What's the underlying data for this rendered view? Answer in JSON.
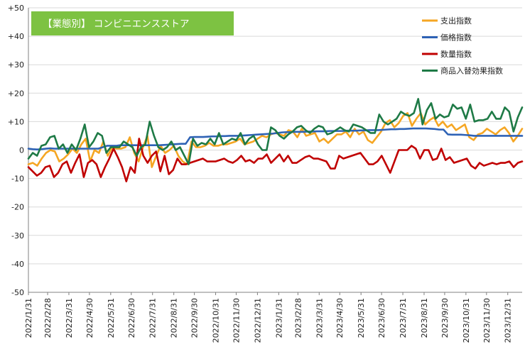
{
  "chart_data": {
    "type": "line",
    "title": "【業態別】 コンビニエンスストア",
    "xlabel": "",
    "ylabel": "",
    "ylim": [
      -50,
      50
    ],
    "yticks": [
      50,
      40,
      30,
      20,
      10,
      0,
      -10,
      -20,
      -30,
      -40,
      -50
    ],
    "ytick_labels": [
      "+50",
      "+40",
      "+30",
      "+20",
      "+10",
      "0",
      "-10",
      "-20",
      "-30",
      "-40",
      "-50"
    ],
    "x_start_date": "2022-01-31",
    "x_end_date": "2024-01-21",
    "x_tick_labels": [
      "2022/1/31",
      "2022/2/28",
      "2022/3/31",
      "2022/4/30",
      "2022/5/31",
      "2022/6/30",
      "2022/7/31",
      "2022/8/31",
      "2022/9/30",
      "2022/10/31",
      "2022/11/30",
      "2022/12/31",
      "2023/1/31",
      "2023/2/28",
      "2023/3/31",
      "2023/4/30",
      "2023/5/31",
      "2023/6/30",
      "2023/7/31",
      "2023/8/31",
      "2023/9/30",
      "2023/10/31",
      "2023/11/30",
      "2023/12/31"
    ],
    "x_tick_dates": [
      "2022-01-31",
      "2022-02-28",
      "2022-03-31",
      "2022-04-30",
      "2022-05-31",
      "2022-06-30",
      "2022-07-31",
      "2022-08-31",
      "2022-09-30",
      "2022-10-31",
      "2022-11-30",
      "2022-12-31",
      "2023-01-31",
      "2023-02-28",
      "2023-03-31",
      "2023-04-30",
      "2023-05-31",
      "2023-06-30",
      "2023-07-31",
      "2023-08-31",
      "2023-09-30",
      "2023-10-31",
      "2023-11-30",
      "2023-12-31"
    ],
    "legend": {
      "position": "top-right",
      "entries": [
        "支出指数",
        "価格指数",
        "数量指数",
        "商品入替効果指数"
      ]
    },
    "series": [
      {
        "name": "支出指数",
        "color": "#f5a623",
        "values": [
          -5,
          -4.5,
          -5.5,
          -3,
          -1,
          0,
          -0.5,
          -4,
          -3,
          -1.5,
          0.5,
          -1,
          2,
          4,
          -4,
          0,
          -1,
          3,
          -2,
          1,
          0.5,
          0.5,
          1,
          4.5,
          -1,
          -4,
          1,
          5,
          -6,
          -2,
          1.5,
          -1,
          0,
          1.5,
          -2,
          -4,
          -5,
          3,
          1,
          1,
          1.5,
          2.5,
          1.5,
          1.5,
          2,
          2,
          2.5,
          3,
          4,
          2,
          2.5,
          3,
          4,
          5,
          4.5,
          5.5,
          6,
          5.5,
          5,
          7,
          6.5,
          4.5,
          7.5,
          5,
          5.5,
          6,
          3,
          4,
          2.5,
          4,
          5.5,
          5.5,
          6.5,
          4.5,
          7.5,
          5.5,
          6.5,
          3.5,
          2.5,
          4.5,
          6.5,
          9.5,
          10.5,
          8,
          9.5,
          12,
          13,
          8.5,
          11,
          13,
          9,
          10.5,
          11.5,
          8.5,
          10,
          8,
          9,
          7,
          8,
          9,
          4.5,
          3.5,
          5.5,
          6,
          7.5,
          6.5,
          5.5,
          7,
          8,
          6,
          3,
          5,
          7.5
        ]
      },
      {
        "name": "価格指数",
        "color": "#2e62b5",
        "values": [
          0.5,
          0.3,
          0.2,
          0.3,
          0.5,
          0.6,
          0.5,
          0.5,
          0.5,
          0.5,
          0.5,
          0.5,
          0.5,
          0.5,
          0.5,
          0.5,
          0.5,
          1,
          1.5,
          1.5,
          1.5,
          1.7,
          1.7,
          1.7,
          1.7,
          1.7,
          1.7,
          1.7,
          1.7,
          1.7,
          1.7,
          1.8,
          1.9,
          2,
          2.1,
          2.2,
          2.2,
          4.5,
          4.6,
          4.6,
          4.6,
          4.7,
          4.8,
          4.8,
          4.9,
          4.9,
          5,
          5,
          5,
          5.1,
          5.2,
          5.3,
          5.4,
          5.5,
          5.6,
          5.7,
          5.8,
          6,
          6.2,
          6.3,
          6.3,
          6.4,
          6.4,
          6.4,
          6.5,
          6.5,
          6.6,
          6.6,
          6.6,
          6.7,
          6.7,
          6.7,
          6.7,
          6.8,
          6.8,
          6.8,
          6.9,
          6.9,
          7,
          7,
          7,
          7.1,
          7.2,
          7.3,
          7.3,
          7.4,
          7.4,
          7.5,
          7.6,
          7.6,
          7.6,
          7.6,
          7.5,
          7.4,
          7.2,
          7.2,
          5.5,
          5.4,
          5.4,
          5.4,
          5.3,
          5.2,
          5,
          5,
          5,
          5,
          5,
          5,
          5,
          5,
          5,
          5,
          5,
          5
        ]
      },
      {
        "name": "数量指数",
        "color": "#c00000",
        "values": [
          -6,
          -7.5,
          -9,
          -8,
          -6,
          -5.5,
          -9.5,
          -8,
          -5,
          -4,
          -8,
          -4.5,
          -1.5,
          -9.5,
          -4.5,
          -3.5,
          -5,
          -9.5,
          -6,
          -3,
          0.5,
          -2.5,
          -6,
          -11,
          -6,
          -8,
          4,
          -2,
          -4.5,
          -2,
          -0.5,
          -7.5,
          -2,
          -8.5,
          -7,
          -3,
          -5,
          -5,
          -4.5,
          -4,
          -3.5,
          -3,
          -4,
          -4,
          -4,
          -3.5,
          -3,
          -4,
          -4.5,
          -3.5,
          -2,
          -4,
          -3.5,
          -4.5,
          -3,
          -3,
          -1.5,
          -4.5,
          -3,
          -1.5,
          -4,
          -2,
          -4.5,
          -4.5,
          -3.5,
          -2.5,
          -2,
          -3,
          -3,
          -3.5,
          -4,
          -6.5,
          -6.5,
          -2,
          -3,
          -2.5,
          -2,
          -1.5,
          -1,
          -3,
          -5,
          -5,
          -4,
          -2,
          -5,
          -8,
          -4,
          0,
          0,
          0,
          1.5,
          0.5,
          -3,
          0,
          0,
          -3.5,
          -3,
          0.5,
          -3.5,
          -2.5,
          -4.5,
          -4,
          -3.5,
          -3,
          -5.5,
          -6.5,
          -4.5,
          -5.5,
          -5,
          -4.5,
          -5,
          -4.5,
          -4.5,
          -4,
          -6,
          -4.5,
          -4
        ]
      },
      {
        "name": "商品入替効果指数",
        "color": "#1e7a46",
        "values": [
          -3,
          -1,
          -2,
          1.5,
          2,
          4.5,
          5,
          0.5,
          2,
          -1,
          2,
          0,
          4,
          9,
          1,
          3,
          6,
          5,
          -1,
          1,
          1,
          1,
          3,
          2,
          1,
          -2,
          1,
          2,
          10,
          5,
          1,
          0,
          1,
          3,
          0,
          1,
          -2,
          -5,
          4,
          1.5,
          2.5,
          2,
          4,
          2,
          6,
          2,
          3,
          4,
          3.5,
          6,
          2,
          4,
          5,
          2,
          0,
          0,
          8,
          7,
          5,
          4,
          5.5,
          6.5,
          8,
          8.5,
          7,
          6,
          7.5,
          8.5,
          8,
          5.5,
          6,
          7,
          8,
          7,
          6.5,
          9,
          8.5,
          8,
          7,
          6,
          6,
          12.5,
          10,
          9,
          10,
          11,
          13.5,
          12.5,
          12,
          13,
          18,
          9,
          14,
          16.5,
          11,
          12.5,
          11.5,
          12,
          16,
          14.5,
          15,
          11,
          16,
          10,
          10.5,
          10.5,
          11,
          13.5,
          11,
          11,
          15,
          13.5,
          6.5,
          11.5,
          15
        ]
      }
    ]
  }
}
